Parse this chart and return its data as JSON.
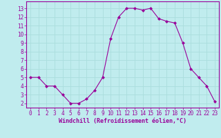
{
  "x": [
    0,
    1,
    2,
    3,
    4,
    5,
    6,
    7,
    8,
    9,
    10,
    11,
    12,
    13,
    14,
    15,
    16,
    17,
    18,
    19,
    20,
    21,
    22,
    23
  ],
  "y": [
    5,
    5,
    4,
    4,
    3,
    2,
    2,
    2.5,
    3.5,
    5,
    9.5,
    12,
    13,
    13,
    12.8,
    13,
    11.8,
    11.5,
    11.3,
    9,
    6,
    5,
    4,
    2.2
  ],
  "line_color": "#990099",
  "marker": "D",
  "marker_size": 2,
  "bg_color": "#c0ecee",
  "grid_color": "#aadddd",
  "xlabel": "Windchill (Refroidissement éolien,°C)",
  "xlabel_color": "#990099",
  "tick_color": "#990099",
  "spine_color": "#990099",
  "ylim": [
    1.5,
    13.8
  ],
  "xlim": [
    -0.5,
    23.5
  ],
  "yticks": [
    2,
    3,
    4,
    5,
    6,
    7,
    8,
    9,
    10,
    11,
    12,
    13
  ],
  "xticks": [
    0,
    1,
    2,
    3,
    4,
    5,
    6,
    7,
    8,
    9,
    10,
    11,
    12,
    13,
    14,
    15,
    16,
    17,
    18,
    19,
    20,
    21,
    22,
    23
  ],
  "tick_fontsize": 5.5,
  "xlabel_fontsize": 6.0
}
